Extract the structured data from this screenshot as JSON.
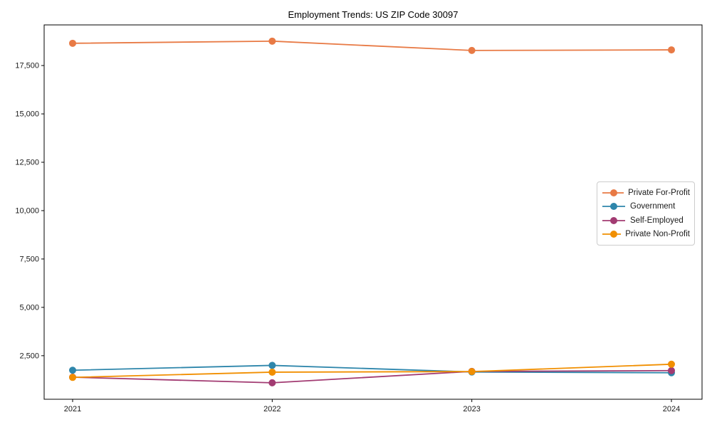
{
  "chart_data": {
    "type": "line",
    "title": "Employment Trends: US ZIP Code 30097",
    "xlabel": "",
    "ylabel": "",
    "x": [
      "2021",
      "2022",
      "2023",
      "2024"
    ],
    "series": [
      {
        "name": "Private For-Profit",
        "color": "#e87a45",
        "values": [
          18650,
          18760,
          18280,
          18310
        ]
      },
      {
        "name": "Government",
        "color": "#2e86ab",
        "values": [
          1750,
          2000,
          1660,
          1620
        ]
      },
      {
        "name": "Self-Employed",
        "color": "#a23b72",
        "values": [
          1390,
          1100,
          1690,
          1730
        ]
      },
      {
        "name": "Private Non-Profit",
        "color": "#f18f01",
        "values": [
          1380,
          1650,
          1680,
          2060
        ]
      }
    ],
    "yticks": [
      2500,
      5000,
      7500,
      10000,
      12500,
      15000,
      17500
    ],
    "ytick_labels": [
      "2,500",
      "5,000",
      "7,500",
      "10,000",
      "12,500",
      "15,000",
      "17,500"
    ],
    "ylim": [
      250,
      19600
    ],
    "grid": false,
    "legend_position": "center-right",
    "marker": "circle",
    "style": {
      "axis_color": "#000000",
      "tick_label_color": "#1a1a1a",
      "background": "#ffffff",
      "legend_border": "#cccccc"
    }
  }
}
